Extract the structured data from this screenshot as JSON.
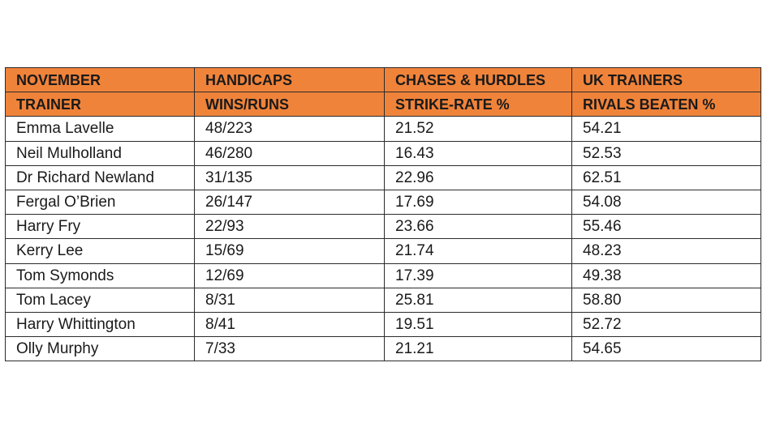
{
  "colors": {
    "header_bg": "#F0833A",
    "border": "#2b2b2b"
  },
  "header_rows": [
    [
      "NOVEMBER",
      "HANDICAPS",
      "CHASES & HURDLES",
      "UK TRAINERS"
    ],
    [
      "TRAINER",
      "WINS/RUNS",
      "STRIKE-RATE %",
      "RIVALS BEATEN %"
    ]
  ],
  "rows": [
    [
      "Emma Lavelle",
      "48/223",
      "21.52",
      "54.21"
    ],
    [
      "Neil Mulholland",
      "46/280",
      "16.43",
      "52.53"
    ],
    [
      "Dr Richard Newland",
      "31/135",
      "22.96",
      "62.51"
    ],
    [
      "Fergal O’Brien",
      "26/147",
      "17.69",
      "54.08"
    ],
    [
      "Harry Fry",
      "22/93",
      "23.66",
      "55.46"
    ],
    [
      "Kerry Lee",
      "15/69",
      "21.74",
      "48.23"
    ],
    [
      "Tom Symonds",
      "12/69",
      "17.39",
      "49.38"
    ],
    [
      "Tom Lacey",
      "8/31",
      "25.81",
      "58.80"
    ],
    [
      "Harry Whittington",
      "8/41",
      "19.51",
      "52.72"
    ],
    [
      "Olly Murphy",
      "7/33",
      "21.21",
      "54.65"
    ]
  ]
}
